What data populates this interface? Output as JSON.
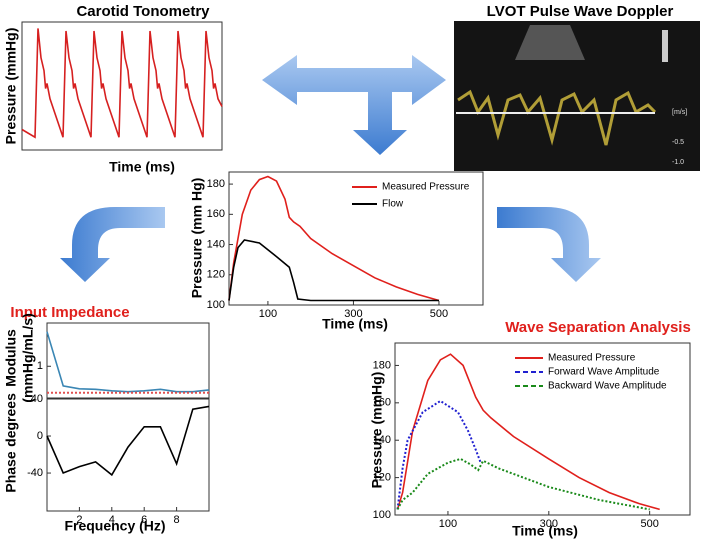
{
  "chart_data": [
    {
      "type": "line",
      "title": "Carotid Tonometry",
      "xlabel": "Time (ms)",
      "ylabel": "Pressure (mmHg)",
      "xlim": [
        0,
        100
      ],
      "ylim": [
        0,
        100
      ],
      "series": [
        {
          "color": "#d62020",
          "x": [
            0,
            6.5,
            8,
            9.5,
            11,
            11.8,
            12.5,
            14,
            20.5,
            22,
            23.5,
            25,
            25.8,
            26.5,
            28,
            34.5,
            36,
            37.5,
            39,
            39.8,
            40.5,
            42,
            48.5,
            50,
            51.5,
            53,
            53.8,
            54.5,
            56,
            62.5,
            64,
            65.5,
            67,
            67.8,
            68.5,
            70,
            76.5,
            78,
            79.5,
            81,
            81.8,
            82.5,
            84,
            90.5,
            92,
            93.5,
            95,
            95.8,
            96.5,
            98,
            100
          ],
          "values": [
            16,
            10,
            95,
            72,
            62,
            48,
            52,
            40,
            10,
            93,
            72,
            62,
            48,
            52,
            40,
            10,
            93,
            72,
            62,
            48,
            52,
            40,
            10,
            93,
            72,
            62,
            48,
            52,
            40,
            10,
            93,
            72,
            62,
            48,
            52,
            40,
            10,
            93,
            72,
            62,
            48,
            52,
            40,
            10,
            93,
            72,
            62,
            48,
            52,
            40,
            34
          ]
        }
      ]
    },
    {
      "type": "line",
      "xlabel": "Time (ms)",
      "ylabel": "Pressure (mm Hg)",
      "xlim": [
        9,
        603
      ],
      "ylim": [
        100,
        188
      ],
      "xticks": [
        100,
        300,
        500
      ],
      "yticks": [
        100,
        120,
        140,
        160,
        180
      ],
      "series": [
        {
          "name": "Measured Pressure",
          "color": "#e0201c",
          "x": [
            9,
            20,
            40,
            60,
            80,
            100,
            120,
            140,
            150,
            160,
            175,
            200,
            250,
            300,
            350,
            400,
            450,
            500
          ],
          "values": [
            103,
            128,
            160,
            176,
            183,
            185,
            182,
            170,
            158,
            155,
            152,
            144,
            134,
            126,
            118,
            112,
            107,
            103
          ]
        },
        {
          "name": "Flow",
          "color": "#000000",
          "x": [
            9,
            20,
            30,
            45,
            80,
            120,
            150,
            160,
            170,
            200,
            500
          ],
          "values": [
            103,
            125,
            138,
            143,
            141,
            132,
            125,
            115,
            104,
            103,
            103
          ]
        }
      ]
    },
    {
      "type": "line",
      "title": "Input Impedance",
      "ylabel": [
        "Modulus",
        "(mmHg/mL/s)"
      ],
      "xlim": [
        0,
        10
      ],
      "ylim": [
        -0.1,
        2.5
      ],
      "yticks": [
        1
      ],
      "series": [
        {
          "color": "#3a86b4",
          "x": [
            0,
            1,
            2,
            3,
            4,
            5,
            6,
            7,
            8,
            9,
            10
          ],
          "values": [
            2.2,
            0.32,
            0.22,
            0.2,
            0.15,
            0.12,
            0.15,
            0.2,
            0.12,
            0.12,
            0.18
          ]
        },
        {
          "color": "#e05050",
          "dashed": true,
          "x": [
            0,
            10
          ],
          "values": [
            0.08,
            0.08
          ]
        }
      ]
    },
    {
      "type": "line",
      "xlabel": "Frequency (Hz)",
      "ylabel": [
        "Phase",
        "degrees"
      ],
      "xlim": [
        0,
        10
      ],
      "ylim": [
        -81,
        40
      ],
      "xticks": [
        2,
        4,
        6,
        8
      ],
      "yticks": [
        40,
        0,
        -40
      ],
      "series": [
        {
          "color": "#000000",
          "x": [
            0,
            1,
            2,
            3,
            4,
            5,
            6,
            7,
            8,
            9,
            10
          ],
          "values": [
            0,
            -40,
            -33,
            -28,
            -42,
            -12,
            10,
            10,
            -30,
            29,
            32
          ]
        }
      ]
    },
    {
      "type": "line",
      "title": "Wave Separation Analysis",
      "xlabel": "Time (ms)",
      "ylabel": "Pressure (mmHg)",
      "xlim": [
        -5,
        580
      ],
      "ylim": [
        100,
        192
      ],
      "xticks": [
        100,
        300,
        500
      ],
      "yticks": [
        100,
        120,
        140,
        160,
        180
      ],
      "series": [
        {
          "name": "Measured Pressure",
          "color": "#e0201c",
          "x": [
            0,
            10,
            30,
            60,
            85,
            105,
            130,
            155,
            170,
            185,
            230,
            300,
            360,
            420,
            480,
            520
          ],
          "values": [
            103,
            112,
            145,
            172,
            183,
            186,
            180,
            163,
            156,
            152,
            142,
            130,
            120,
            112,
            106,
            103
          ]
        },
        {
          "name": "Forward Wave Amplitude",
          "color": "#2020d0",
          "dashed": true,
          "x": [
            0,
            10,
            20,
            50,
            85,
            120,
            140,
            155,
            165
          ],
          "values": [
            103,
            125,
            140,
            155,
            161,
            155,
            145,
            135,
            128
          ]
        },
        {
          "name": "Backward Wave Amplitude",
          "color": "#1a8a1a",
          "dashed": true,
          "x": [
            0,
            10,
            30,
            60,
            100,
            125,
            145,
            160,
            170,
            200,
            300,
            400,
            500
          ],
          "values": [
            103,
            108,
            112,
            122,
            128,
            130,
            127,
            124,
            129,
            125,
            115,
            108,
            103
          ]
        }
      ]
    }
  ],
  "doppler": {
    "title": "LVOT Pulse Wave Doppler",
    "scale_labels": [
      "[m/s]",
      "-0.5",
      "-1.0"
    ]
  }
}
